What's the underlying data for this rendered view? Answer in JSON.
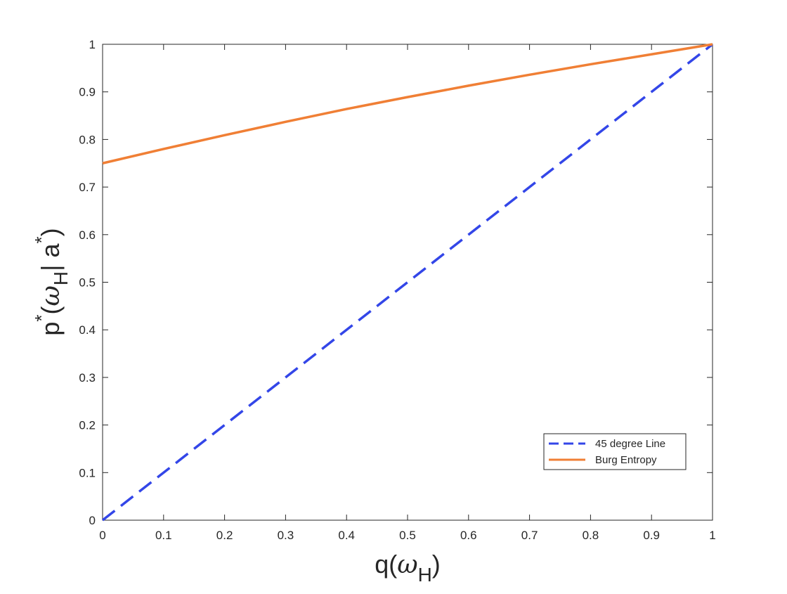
{
  "chart_data": {
    "type": "line",
    "xlabel": {
      "base": "q(",
      "omega": "ω",
      "sub": "H",
      "close": ")"
    },
    "ylabel": {
      "p": "p",
      "star1": "*",
      "open": "(",
      "omega": "ω",
      "sub": "H",
      "bar": "| a",
      "star2": "*",
      "close": ")"
    },
    "xlim": [
      0,
      1
    ],
    "ylim": [
      0,
      1
    ],
    "xticks": [
      "0",
      "0.1",
      "0.2",
      "0.3",
      "0.4",
      "0.5",
      "0.6",
      "0.7",
      "0.8",
      "0.9",
      "1"
    ],
    "yticks": [
      "0",
      "0.1",
      "0.2",
      "0.3",
      "0.4",
      "0.5",
      "0.6",
      "0.7",
      "0.8",
      "0.9",
      "1"
    ],
    "grid": false,
    "legend_position": "bottom-right",
    "series": [
      {
        "name": "45 degree Line",
        "style": "dashed",
        "color": "#3346e8",
        "x": [
          0,
          1
        ],
        "y": [
          0,
          1
        ]
      },
      {
        "name": "Burg Entropy",
        "style": "solid",
        "color": "#f07f35",
        "x": [
          0,
          0.1,
          0.2,
          0.3,
          0.4,
          0.5,
          0.6,
          0.7,
          0.8,
          0.9,
          1
        ],
        "y": [
          0.75,
          0.78,
          0.809,
          0.837,
          0.864,
          0.889,
          0.913,
          0.936,
          0.958,
          0.979,
          1.0
        ]
      }
    ]
  }
}
